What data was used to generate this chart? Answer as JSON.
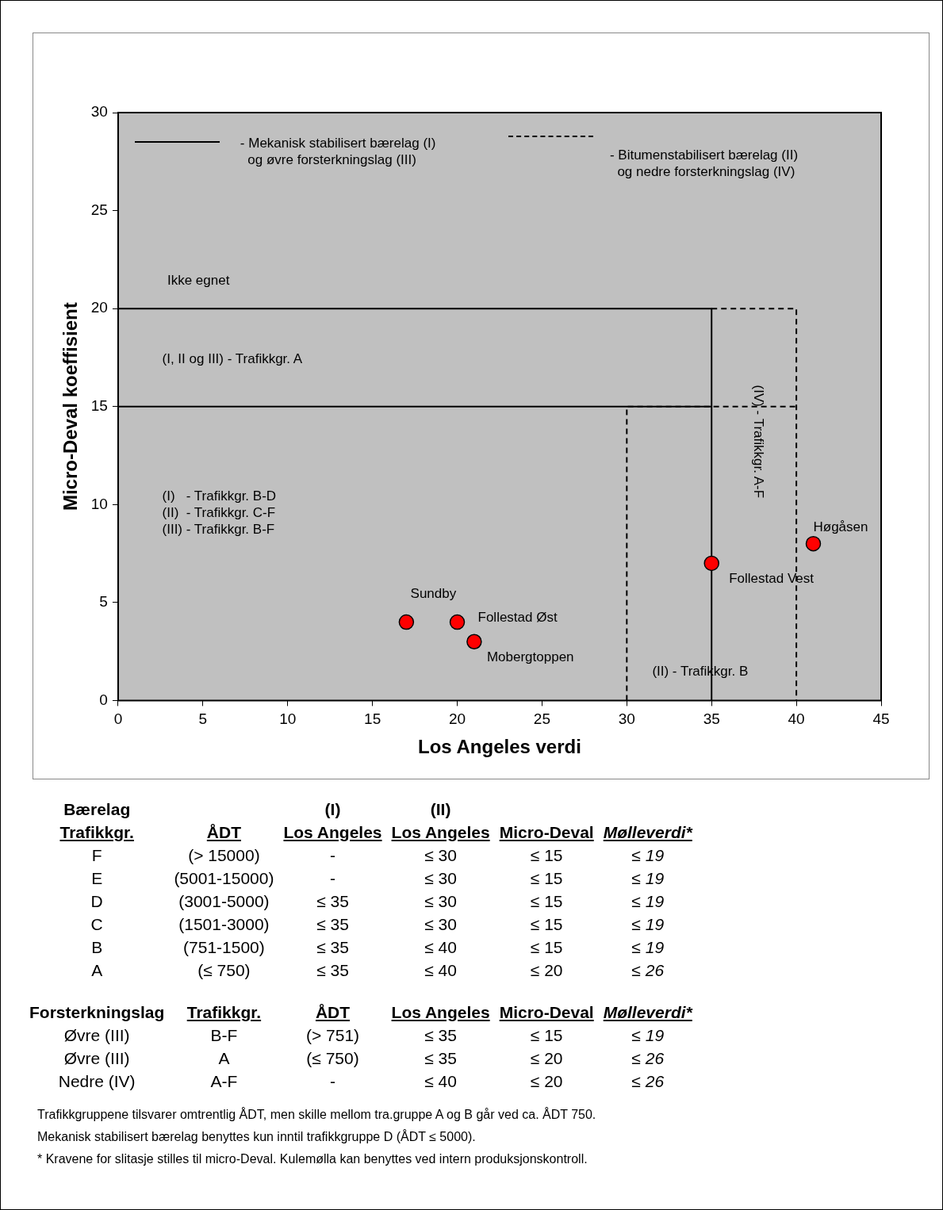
{
  "chart_data": [
    {
      "type": "scatter",
      "xlabel": "Los Angeles verdi",
      "ylabel": "Micro-Deval koeffisient",
      "xlim": [
        0,
        45
      ],
      "xticks": [
        0,
        5,
        10,
        15,
        20,
        25,
        30,
        35,
        40,
        45
      ],
      "ylim": [
        0,
        30
      ],
      "yticks": [
        0,
        5,
        10,
        15,
        20,
        25,
        30
      ],
      "marker": "circle",
      "series": [
        {
          "type": "scatter",
          "color": "#ff0000",
          "x": [
            17,
            20,
            21,
            35,
            41
          ],
          "values": [
            4,
            4,
            3,
            7,
            8
          ]
        },
        {
          "type": "line",
          "color": "#000000",
          "line_style": "solid",
          "marker": "none",
          "x": [
            0,
            35,
            35
          ],
          "values": [
            20,
            20,
            0
          ]
        },
        {
          "type": "line",
          "color": "#000000",
          "line_style": "solid",
          "marker": "none",
          "x": [
            0,
            35
          ],
          "values": [
            15,
            15
          ]
        },
        {
          "type": "line",
          "color": "#000000",
          "line_style": "dashed",
          "marker": "none",
          "x": [
            35,
            40,
            40
          ],
          "values": [
            20,
            20,
            0
          ]
        },
        {
          "type": "line",
          "color": "#000000",
          "line_style": "dashed",
          "marker": "none",
          "x": [
            30,
            30,
            40
          ],
          "values": [
            0,
            15,
            15
          ]
        }
      ],
      "annotations": [
        {
          "text": "Sundby",
          "x": 17,
          "y": 4
        },
        {
          "text": "Follestad Øst",
          "x": 20,
          "y": 4
        },
        {
          "text": "Mobergtoppen",
          "x": 21,
          "y": 3
        },
        {
          "text": "Follestad Vest",
          "x": 35,
          "y": 7
        },
        {
          "text": "Høgåsen",
          "x": 41,
          "y": 8
        },
        "Ikke egnet",
        "(I, II og III) - Trafikkgr. A",
        "(I)   - Trafikkgr. B-D\n(II)  - Trafikkgr. C-F\n(III) - Trafikkgr. B-F",
        "(II) - Trafikkgr. B",
        "(IV) - Trafikkgr. A-F",
        "- Mekanisk stabilisert bærelag (I)\n  og øvre forsterkningslag (III)",
        "- Bitumenstabilisert bærelag (II)\n  og nedre forsterkningslag (IV)"
      ]
    },
    {
      "type": "other",
      "annotations": [
        "Bærelag\nTrafikkgr.",
        "ÅDT",
        "(I)\nLos Angeles",
        "(II)\nLos Angeles",
        "Micro-Deval",
        "Mølleverdi*",
        "F",
        "(> 15000)",
        "-",
        "≤ 30",
        "≤ 15",
        "≤ 19",
        "E",
        "(5001-15000)",
        "-",
        "≤ 30",
        "≤ 15",
        "≤ 19",
        "D",
        "(3001-5000)",
        "≤ 35",
        "≤ 30",
        "≤ 15",
        "≤ 19",
        "C",
        "(1501-3000)",
        "≤ 35",
        "≤ 30",
        "≤ 15",
        "≤ 19",
        "B",
        "(751-1500)",
        "≤ 35",
        "≤ 40",
        "≤ 15",
        "≤ 19",
        "A",
        "(≤ 750)",
        "≤ 35",
        "≤ 40",
        "≤ 20",
        "≤ 26",
        "Forsterkningslag",
        "Trafikkgr.",
        "ÅDT",
        "Los Angeles",
        "Micro-Deval",
        "Mølleverdi*",
        "Øvre (III)",
        "B-F",
        "(> 751)",
        "≤ 35",
        "≤ 15",
        "≤ 19",
        "Øvre (III)",
        "A",
        "(≤ 750)",
        "≤ 35",
        "≤ 20",
        "≤ 26",
        "Nedre (IV)",
        "A-F",
        "-",
        "≤ 40",
        "≤ 20",
        "≤ 26",
        "Trafikkgruppene tilsvarer omtrentlig ÅDT, men skille mellom tra.gruppe A og B går ved ca. ÅDT 750.",
        "Mekanisk stabilisert bærelag benyttes kun inntil trafikkgruppe D (ÅDT ≤ 5000).",
        "* Kravene for slitasje stilles til micro-Deval. Kulemølla kan benyttes ved intern produksjonskontroll."
      ]
    }
  ]
}
